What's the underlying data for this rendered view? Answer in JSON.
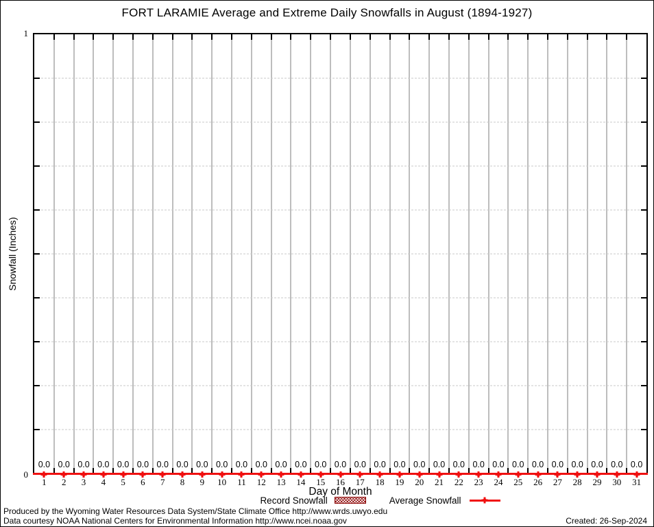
{
  "chart_data": {
    "type": "line",
    "title": "FORT LARAMIE Average and Extreme Daily Snowfalls in August (1894-1927)",
    "xlabel": "Day of Month",
    "ylabel": "Snowfall (Inches)",
    "ylim": [
      0,
      1
    ],
    "ytick_labels": [
      "0",
      "1"
    ],
    "ytick_step": 0.1,
    "grid": true,
    "legend_position": "bottom",
    "x": [
      1,
      2,
      3,
      4,
      5,
      6,
      7,
      8,
      9,
      10,
      11,
      12,
      13,
      14,
      15,
      16,
      17,
      18,
      19,
      20,
      21,
      22,
      23,
      24,
      25,
      26,
      27,
      28,
      29,
      30,
      31
    ],
    "series": [
      {
        "name": "Record Snowfall",
        "style": "hatched-box",
        "color": "#8b0000",
        "values": [
          0.0,
          0.0,
          0.0,
          0.0,
          0.0,
          0.0,
          0.0,
          0.0,
          0.0,
          0.0,
          0.0,
          0.0,
          0.0,
          0.0,
          0.0,
          0.0,
          0.0,
          0.0,
          0.0,
          0.0,
          0.0,
          0.0,
          0.0,
          0.0,
          0.0,
          0.0,
          0.0,
          0.0,
          0.0,
          0.0,
          0.0
        ]
      },
      {
        "name": "Average Snowfall",
        "style": "line-points",
        "color": "#f01010",
        "values": [
          0.0,
          0.0,
          0.0,
          0.0,
          0.0,
          0.0,
          0.0,
          0.0,
          0.0,
          0.0,
          0.0,
          0.0,
          0.0,
          0.0,
          0.0,
          0.0,
          0.0,
          0.0,
          0.0,
          0.0,
          0.0,
          0.0,
          0.0,
          0.0,
          0.0,
          0.0,
          0.0,
          0.0,
          0.0,
          0.0,
          0.0
        ]
      }
    ],
    "value_label_format": "0.0"
  },
  "colors": {
    "series_red": "#f01010",
    "record_dark_red": "#8b0000",
    "grid_vertical": "#bdbdbd",
    "grid_horizontal": "#c9c9c9",
    "axis": "#000000",
    "background": "#ffffff"
  },
  "footer": {
    "line1": "Produced by the Wyoming Water Resources Data System/State Climate Office http://www.wrds.uwyo.edu",
    "line2": "Data courtesy NOAA National Centers for Environmental Information http://www.ncei.noaa.gov",
    "created": "Created: 26-Sep-2024"
  }
}
